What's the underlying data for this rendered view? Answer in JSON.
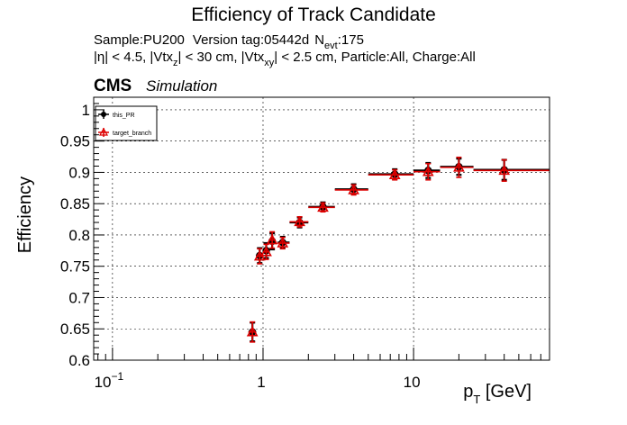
{
  "chart_data": {
    "type": "scatter",
    "title": "Efficiency of Track Candidate",
    "subtitle_line1": {
      "sample": "Sample:PU200",
      "version": "Version tag:05442d",
      "nevt_N": "N",
      "nevt_sub": "evt",
      "nevt_value": ":175"
    },
    "subtitle_line2": {
      "p1": "|η| < 4.5, |Vtx",
      "s1": "z",
      "p2": "| < 30 cm, |Vtx",
      "s2": "xy",
      "p3": "| < 2.5 cm, Particle:All, Charge:All"
    },
    "cms_label": "CMS",
    "simulation_label": "Simulation",
    "ylabel": "Efficiency",
    "xlabel_main": "p",
    "xlabel_sub": "T",
    "xlabel_unit": " [GeV]",
    "xscale": "log",
    "xlim": [
      0.075,
      80
    ],
    "ylim": [
      0.6,
      1.02
    ],
    "grid": true,
    "legend_position": "top-left",
    "yticks": [
      {
        "value": 0.6,
        "label": "0.6"
      },
      {
        "value": 0.65,
        "label": "0.65"
      },
      {
        "value": 0.7,
        "label": "0.7"
      },
      {
        "value": 0.75,
        "label": "0.75"
      },
      {
        "value": 0.8,
        "label": "0.8"
      },
      {
        "value": 0.85,
        "label": "0.85"
      },
      {
        "value": 0.9,
        "label": "0.9"
      },
      {
        "value": 0.95,
        "label": "0.95"
      },
      {
        "value": 1.0,
        "label": "1"
      }
    ],
    "xticks": [
      {
        "value": 0.1,
        "base": "10",
        "exp": "−1"
      },
      {
        "value": 1,
        "base": "1",
        "exp": ""
      },
      {
        "value": 10,
        "base": "10",
        "exp": ""
      }
    ],
    "series": [
      {
        "name": "this_PR",
        "color": "#000000",
        "marker": "circle",
        "points": [
          {
            "x": 0.85,
            "xlo": 0.8,
            "xhi": 0.9,
            "y": 0.645,
            "err": 0.015
          },
          {
            "x": 0.95,
            "xlo": 0.9,
            "xhi": 1.0,
            "y": 0.767,
            "err": 0.012
          },
          {
            "x": 1.05,
            "xlo": 1.0,
            "xhi": 1.1,
            "y": 0.775,
            "err": 0.012
          },
          {
            "x": 1.15,
            "xlo": 1.1,
            "xhi": 1.2,
            "y": 0.79,
            "err": 0.013
          },
          {
            "x": 1.35,
            "xlo": 1.25,
            "xhi": 1.5,
            "y": 0.788,
            "err": 0.009
          },
          {
            "x": 1.75,
            "xlo": 1.5,
            "xhi": 2.0,
            "y": 0.82,
            "err": 0.008
          },
          {
            "x": 2.5,
            "xlo": 2.0,
            "xhi": 3.0,
            "y": 0.845,
            "err": 0.007
          },
          {
            "x": 4.0,
            "xlo": 3.0,
            "xhi": 5.0,
            "y": 0.873,
            "err": 0.008
          },
          {
            "x": 7.5,
            "xlo": 5.0,
            "xhi": 10.0,
            "y": 0.897,
            "err": 0.008
          },
          {
            "x": 12.5,
            "xlo": 10.0,
            "xhi": 15.0,
            "y": 0.903,
            "err": 0.012
          },
          {
            "x": 20.0,
            "xlo": 15.0,
            "xhi": 25.0,
            "y": 0.909,
            "err": 0.013
          },
          {
            "x": 40.0,
            "xlo": 25.0,
            "xhi": 80.0,
            "y": 0.904,
            "err": 0.016
          }
        ]
      },
      {
        "name": "target_branch",
        "color": "#dd0000",
        "marker": "triangle-open",
        "points": [
          {
            "x": 0.85,
            "xlo": 0.8,
            "xhi": 0.9,
            "y": 0.645,
            "err": 0.016
          },
          {
            "x": 0.95,
            "xlo": 0.9,
            "xhi": 1.0,
            "y": 0.766,
            "err": 0.012
          },
          {
            "x": 1.05,
            "xlo": 1.0,
            "xhi": 1.1,
            "y": 0.773,
            "err": 0.012
          },
          {
            "x": 1.15,
            "xlo": 1.1,
            "xhi": 1.2,
            "y": 0.792,
            "err": 0.013
          },
          {
            "x": 1.35,
            "xlo": 1.25,
            "xhi": 1.5,
            "y": 0.787,
            "err": 0.009
          },
          {
            "x": 1.75,
            "xlo": 1.5,
            "xhi": 2.0,
            "y": 0.821,
            "err": 0.008
          },
          {
            "x": 2.5,
            "xlo": 2.0,
            "xhi": 3.0,
            "y": 0.844,
            "err": 0.007
          },
          {
            "x": 4.0,
            "xlo": 3.0,
            "xhi": 5.0,
            "y": 0.872,
            "err": 0.008
          },
          {
            "x": 7.5,
            "xlo": 5.0,
            "xhi": 10.0,
            "y": 0.896,
            "err": 0.008
          },
          {
            "x": 12.5,
            "xlo": 10.0,
            "xhi": 15.0,
            "y": 0.901,
            "err": 0.013
          },
          {
            "x": 20.0,
            "xlo": 15.0,
            "xhi": 25.0,
            "y": 0.908,
            "err": 0.016
          },
          {
            "x": 40.0,
            "xlo": 25.0,
            "xhi": 80.0,
            "y": 0.903,
            "err": 0.017
          }
        ]
      }
    ]
  }
}
